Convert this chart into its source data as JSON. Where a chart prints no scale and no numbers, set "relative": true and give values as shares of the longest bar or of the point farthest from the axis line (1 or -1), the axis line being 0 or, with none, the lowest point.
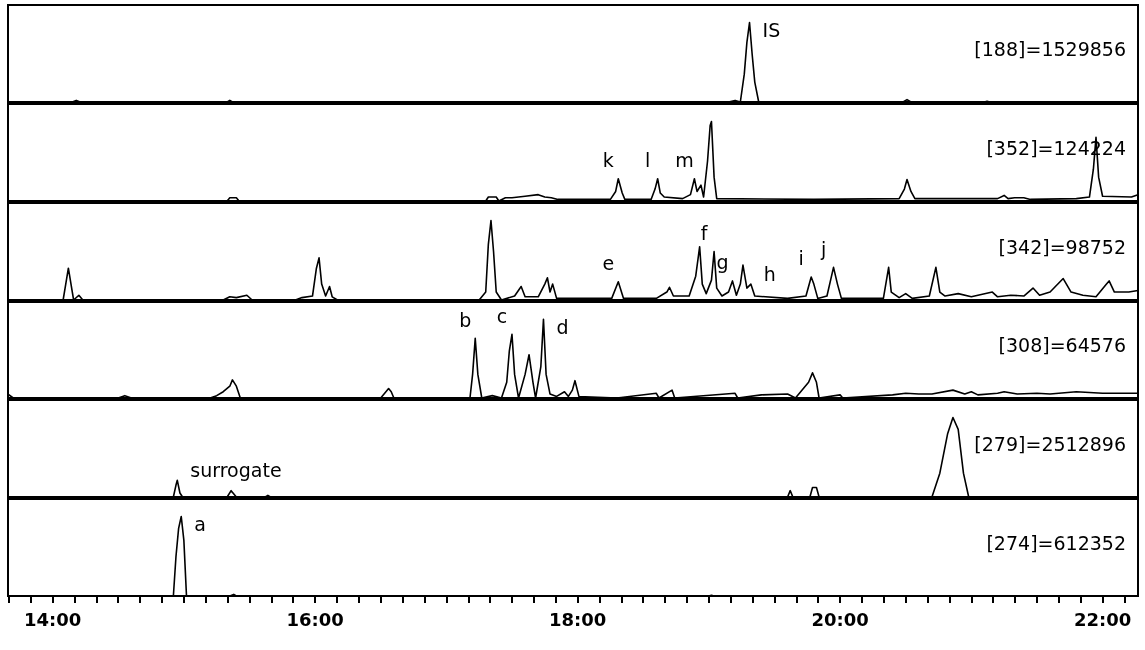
{
  "chart_data": [
    {
      "type": "line",
      "title": "[188]=1529856",
      "relative": true,
      "color": "#000000",
      "xlim": [
        13.66,
        22.27
      ],
      "tick_labels": false,
      "x": [
        13.66,
        14.15,
        14.18,
        14.21,
        15.33,
        15.35,
        15.37,
        19.15,
        19.2,
        19.24,
        19.27,
        19.29,
        19.31,
        19.33,
        19.35,
        19.38,
        20.48,
        20.51,
        20.54,
        21.1,
        21.12,
        21.14,
        22.27
      ],
      "values": [
        0,
        0,
        0.02,
        0,
        0,
        0.02,
        0,
        0,
        0.02,
        0,
        0.35,
        0.75,
        1.0,
        0.6,
        0.25,
        0,
        0,
        0.03,
        0,
        0,
        0.01,
        0,
        0
      ],
      "annotations": [
        {
          "text": "IS",
          "x": 19.31,
          "y": 1.0
        }
      ]
    },
    {
      "type": "line",
      "title": "[352]=124224",
      "relative": true,
      "color": "#000000",
      "xlim": [
        13.66,
        22.27
      ],
      "tick_labels": false,
      "x": [
        13.66,
        15.33,
        15.35,
        15.4,
        15.42,
        17.3,
        17.32,
        17.38,
        17.4,
        17.45,
        17.5,
        17.6,
        17.7,
        17.75,
        17.8,
        17.85,
        18.25,
        18.29,
        18.31,
        18.34,
        18.36,
        18.56,
        18.59,
        18.61,
        18.63,
        18.66,
        18.8,
        18.86,
        18.89,
        18.91,
        18.94,
        18.96,
        18.99,
        19.01,
        19.02,
        19.04,
        19.06,
        19.8,
        20.45,
        20.49,
        20.51,
        20.54,
        20.57,
        21.2,
        21.25,
        21.28,
        21.33,
        21.4,
        21.45,
        21.8,
        21.9,
        21.93,
        21.95,
        21.97,
        22.0,
        22.22,
        22.27
      ],
      "values": [
        0,
        0,
        0.04,
        0.04,
        0,
        0,
        0.05,
        0.05,
        0,
        0.04,
        0.04,
        0.06,
        0.08,
        0.05,
        0.04,
        0.02,
        0.02,
        0.12,
        0.28,
        0.1,
        0.02,
        0.02,
        0.15,
        0.28,
        0.1,
        0.05,
        0.03,
        0.08,
        0.28,
        0.12,
        0.2,
        0.05,
        0.5,
        0.95,
        1.0,
        0.3,
        0.03,
        0.02,
        0.03,
        0.15,
        0.27,
        0.12,
        0.03,
        0.03,
        0.07,
        0.03,
        0.04,
        0.04,
        0.02,
        0.03,
        0.05,
        0.4,
        0.8,
        0.3,
        0.06,
        0.05,
        0.08
      ],
      "annotations": [
        {
          "text": "k",
          "x": 18.31,
          "y": 0.28
        },
        {
          "text": "l",
          "x": 18.61,
          "y": 0.28
        },
        {
          "text": "m",
          "x": 18.89,
          "y": 0.28
        }
      ]
    },
    {
      "type": "line",
      "title": "[342]=98752",
      "relative": true,
      "color": "#000000",
      "xlim": [
        13.66,
        22.27
      ],
      "tick_labels": false,
      "x": [
        13.66,
        14.08,
        14.1,
        14.12,
        14.14,
        14.16,
        14.2,
        14.23,
        15.3,
        15.35,
        15.4,
        15.48,
        15.52,
        15.85,
        15.9,
        15.98,
        16.01,
        16.03,
        16.05,
        16.08,
        16.11,
        16.13,
        16.17,
        17.25,
        17.3,
        17.32,
        17.34,
        17.36,
        17.38,
        17.42,
        17.52,
        17.57,
        17.6,
        17.7,
        17.75,
        17.77,
        17.79,
        17.81,
        17.84,
        18.26,
        18.31,
        18.35,
        18.6,
        18.68,
        18.7,
        18.73,
        18.85,
        18.9,
        18.93,
        18.95,
        18.98,
        19.02,
        19.04,
        19.06,
        19.1,
        19.15,
        19.18,
        19.21,
        19.24,
        19.26,
        19.29,
        19.32,
        19.35,
        19.6,
        19.74,
        19.78,
        19.8,
        19.83,
        19.9,
        19.95,
        19.98,
        20.01,
        20.33,
        20.37,
        20.39,
        20.45,
        20.5,
        20.55,
        20.68,
        20.73,
        20.76,
        20.8,
        20.9,
        21.0,
        21.16,
        21.2,
        21.3,
        21.4,
        21.47,
        21.52,
        21.6,
        21.7,
        21.76,
        21.85,
        21.95,
        22.03,
        22.05,
        22.09,
        22.2,
        22.27
      ],
      "values": [
        0,
        0,
        0.2,
        0.4,
        0.2,
        0,
        0.06,
        0,
        0,
        0.04,
        0.03,
        0.06,
        0,
        0,
        0.03,
        0.05,
        0.4,
        0.53,
        0.2,
        0.05,
        0.17,
        0.04,
        0,
        0,
        0.1,
        0.7,
        1.0,
        0.6,
        0.1,
        0,
        0.05,
        0.17,
        0.04,
        0.04,
        0.2,
        0.28,
        0.1,
        0.2,
        0.02,
        0.02,
        0.23,
        0.02,
        0.02,
        0.1,
        0.16,
        0.05,
        0.05,
        0.3,
        0.67,
        0.2,
        0.08,
        0.25,
        0.61,
        0.15,
        0.05,
        0.1,
        0.24,
        0.06,
        0.2,
        0.44,
        0.15,
        0.2,
        0.05,
        0.02,
        0.05,
        0.29,
        0.2,
        0.02,
        0.05,
        0.41,
        0.2,
        0.02,
        0.02,
        0.41,
        0.1,
        0.03,
        0.08,
        0.02,
        0.05,
        0.41,
        0.1,
        0.05,
        0.08,
        0.04,
        0.1,
        0.04,
        0.06,
        0.05,
        0.15,
        0.06,
        0.1,
        0.27,
        0.1,
        0.06,
        0.04,
        0.2,
        0.24,
        0.1,
        0.1,
        0.12
      ],
      "annotations": [
        {
          "text": "e",
          "x": 18.31,
          "y": 0.23
        },
        {
          "text": "f",
          "x": 19.04,
          "y": 0.61
        },
        {
          "text": "g",
          "x": 19.18,
          "y": 0.24
        },
        {
          "text": "h",
          "x": 19.32,
          "y": 0.2
        },
        {
          "text": "i",
          "x": 19.78,
          "y": 0.29
        },
        {
          "text": "j",
          "x": 19.95,
          "y": 0.41
        }
      ]
    },
    {
      "type": "line",
      "title": "[308]=64576",
      "relative": true,
      "color": "#000000",
      "xlim": [
        13.66,
        22.27
      ],
      "tick_labels": false,
      "x": [
        13.66,
        13.7,
        14.5,
        14.55,
        14.6,
        15.2,
        15.25,
        15.3,
        15.35,
        15.37,
        15.4,
        15.43,
        15.5,
        15.55,
        16.5,
        16.56,
        16.58,
        16.6,
        17.18,
        17.2,
        17.22,
        17.24,
        17.27,
        17.35,
        17.42,
        17.46,
        17.48,
        17.5,
        17.52,
        17.55,
        17.6,
        17.63,
        17.66,
        17.68,
        17.72,
        17.74,
        17.76,
        17.79,
        17.84,
        17.9,
        17.93,
        17.96,
        17.98,
        18.01,
        18.3,
        18.6,
        18.62,
        18.72,
        18.74,
        19.2,
        19.22,
        19.4,
        19.6,
        19.66,
        19.76,
        19.79,
        19.82,
        19.84,
        20.0,
        20.02,
        20.4,
        20.5,
        20.6,
        20.7,
        20.86,
        20.95,
        21.0,
        21.05,
        21.2,
        21.25,
        21.35,
        21.5,
        21.6,
        21.8,
        22.0,
        22.27
      ],
      "values": [
        0.05,
        0,
        0,
        0.03,
        0,
        0,
        0.03,
        0.08,
        0.15,
        0.23,
        0.15,
        0,
        0,
        0,
        0,
        0.12,
        0.08,
        0,
        0,
        0.3,
        0.76,
        0.3,
        0,
        0.03,
        0,
        0.2,
        0.6,
        0.81,
        0.3,
        0,
        0.3,
        0.55,
        0.2,
        0,
        0.4,
        1.0,
        0.3,
        0.05,
        0.02,
        0.08,
        0.02,
        0.1,
        0.22,
        0.02,
        0,
        0.06,
        0,
        0.1,
        0,
        0.06,
        0,
        0.04,
        0.05,
        0,
        0.2,
        0.32,
        0.2,
        0,
        0.04,
        0,
        0.04,
        0.06,
        0.05,
        0.05,
        0.1,
        0.05,
        0.08,
        0.04,
        0.06,
        0.08,
        0.05,
        0.06,
        0.05,
        0.08,
        0.06,
        0.06
      ],
      "annotations": [
        {
          "text": "b",
          "x": 17.22,
          "y": 0.76
        },
        {
          "text": "c",
          "x": 17.5,
          "y": 0.81
        },
        {
          "text": "d",
          "x": 17.74,
          "y": 1.0
        }
      ]
    },
    {
      "type": "line",
      "title": "[279]=2512896",
      "relative": true,
      "color": "#000000",
      "xlim": [
        13.66,
        22.27
      ],
      "tick_labels": false,
      "x": [
        13.66,
        14.92,
        14.94,
        14.95,
        14.97,
        14.99,
        15.33,
        15.36,
        15.4,
        15.62,
        15.64,
        15.66,
        19.6,
        19.62,
        19.64,
        19.77,
        19.79,
        19.82,
        19.84,
        20.7,
        20.76,
        20.82,
        20.86,
        20.9,
        20.94,
        20.98,
        22.27
      ],
      "values": [
        0,
        0,
        0.15,
        0.21,
        0.05,
        0,
        0,
        0.08,
        0,
        0,
        0.02,
        0,
        0,
        0.08,
        0,
        0,
        0.12,
        0.12,
        0,
        0,
        0.3,
        0.8,
        1.0,
        0.85,
        0.3,
        0,
        0
      ],
      "annotations": [
        {
          "text": "surrogate",
          "x": 14.95,
          "y": 0.21
        }
      ]
    },
    {
      "type": "line",
      "title": "[274]=612352",
      "relative": true,
      "color": "#000000",
      "xlim": [
        13.66,
        22.27
      ],
      "tick_labels": "x",
      "x": [
        13.66,
        14.92,
        14.94,
        14.96,
        14.98,
        15.0,
        15.02,
        15.35,
        15.38,
        15.4,
        19.0,
        19.02,
        19.04,
        22.27
      ],
      "values": [
        0,
        0,
        0.5,
        0.85,
        1.0,
        0.7,
        0,
        0,
        0.02,
        0,
        0,
        0.01,
        0,
        0
      ],
      "xticks": [
        {
          "value": 13.667,
          "label": null
        },
        {
          "value": 13.833,
          "label": null
        },
        {
          "value": 14,
          "label": "14:00"
        },
        {
          "value": 14.167,
          "label": null
        },
        {
          "value": 14.333,
          "label": null
        },
        {
          "value": 14.5,
          "label": null
        },
        {
          "value": 14.667,
          "label": null
        },
        {
          "value": 14.833,
          "label": null
        },
        {
          "value": 15,
          "label": null
        },
        {
          "value": 15.167,
          "label": null
        },
        {
          "value": 15.333,
          "label": null
        },
        {
          "value": 15.5,
          "label": null
        },
        {
          "value": 15.667,
          "label": null
        },
        {
          "value": 15.833,
          "label": null
        },
        {
          "value": 16,
          "label": "16:00"
        },
        {
          "value": 16.167,
          "label": null
        },
        {
          "value": 16.333,
          "label": null
        },
        {
          "value": 16.5,
          "label": null
        },
        {
          "value": 16.667,
          "label": null
        },
        {
          "value": 16.833,
          "label": null
        },
        {
          "value": 17,
          "label": null
        },
        {
          "value": 17.167,
          "label": null
        },
        {
          "value": 17.333,
          "label": null
        },
        {
          "value": 17.5,
          "label": null
        },
        {
          "value": 17.667,
          "label": null
        },
        {
          "value": 17.833,
          "label": null
        },
        {
          "value": 18,
          "label": "18:00"
        },
        {
          "value": 18.167,
          "label": null
        },
        {
          "value": 18.333,
          "label": null
        },
        {
          "value": 18.5,
          "label": null
        },
        {
          "value": 18.667,
          "label": null
        },
        {
          "value": 18.833,
          "label": null
        },
        {
          "value": 19,
          "label": null
        },
        {
          "value": 19.167,
          "label": null
        },
        {
          "value": 19.333,
          "label": null
        },
        {
          "value": 19.5,
          "label": null
        },
        {
          "value": 19.667,
          "label": null
        },
        {
          "value": 19.833,
          "label": null
        },
        {
          "value": 20,
          "label": "20:00"
        },
        {
          "value": 20.167,
          "label": null
        },
        {
          "value": 20.333,
          "label": null
        },
        {
          "value": 20.5,
          "label": null
        },
        {
          "value": 20.667,
          "label": null
        },
        {
          "value": 20.833,
          "label": null
        },
        {
          "value": 21,
          "label": null
        },
        {
          "value": 21.167,
          "label": null
        },
        {
          "value": 21.333,
          "label": null
        },
        {
          "value": 21.5,
          "label": null
        },
        {
          "value": 21.667,
          "label": null
        },
        {
          "value": 21.833,
          "label": null
        },
        {
          "value": 22,
          "label": "22:00"
        },
        {
          "value": 22.167,
          "label": null
        }
      ],
      "annotations": [
        {
          "text": "a",
          "x": 14.98,
          "y": 1.0
        }
      ]
    }
  ]
}
